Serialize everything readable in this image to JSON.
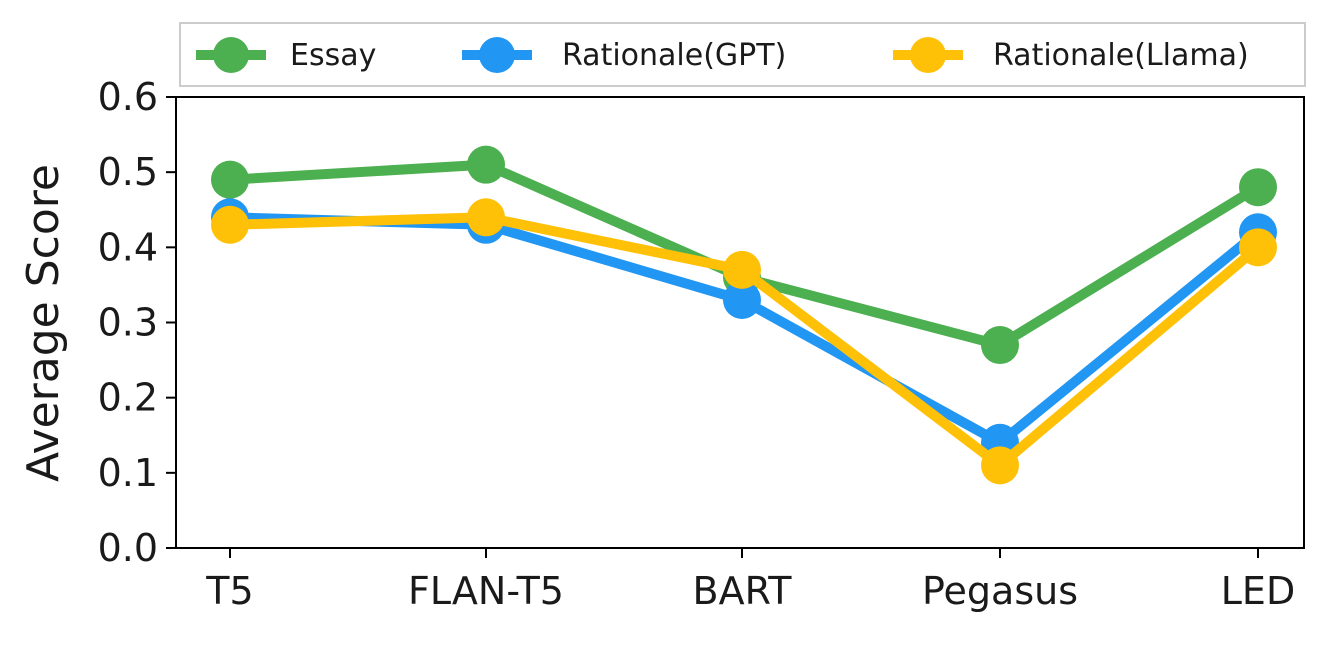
{
  "chart_data": {
    "type": "line",
    "title": "",
    "xlabel": "",
    "ylabel": "Average Score",
    "categories": [
      "T5",
      "FLAN-T5",
      "BART",
      "Pegasus",
      "LED"
    ],
    "ylim": [
      0.0,
      0.6
    ],
    "yticks": [
      "0.0",
      "0.1",
      "0.2",
      "0.3",
      "0.4",
      "0.5",
      "0.6"
    ],
    "grid": false,
    "legend_position": "top-right (above plot)",
    "series": [
      {
        "name": "Essay",
        "color": "#4CAF50",
        "values": [
          0.49,
          0.51,
          0.36,
          0.27,
          0.48
        ]
      },
      {
        "name": "Rationale(GPT)",
        "color": "#2196F3",
        "values": [
          0.44,
          0.43,
          0.33,
          0.14,
          0.42
        ]
      },
      {
        "name": "Rationale(Llama)",
        "color": "#FFC107",
        "values": [
          0.43,
          0.44,
          0.37,
          0.11,
          0.4
        ]
      }
    ]
  }
}
